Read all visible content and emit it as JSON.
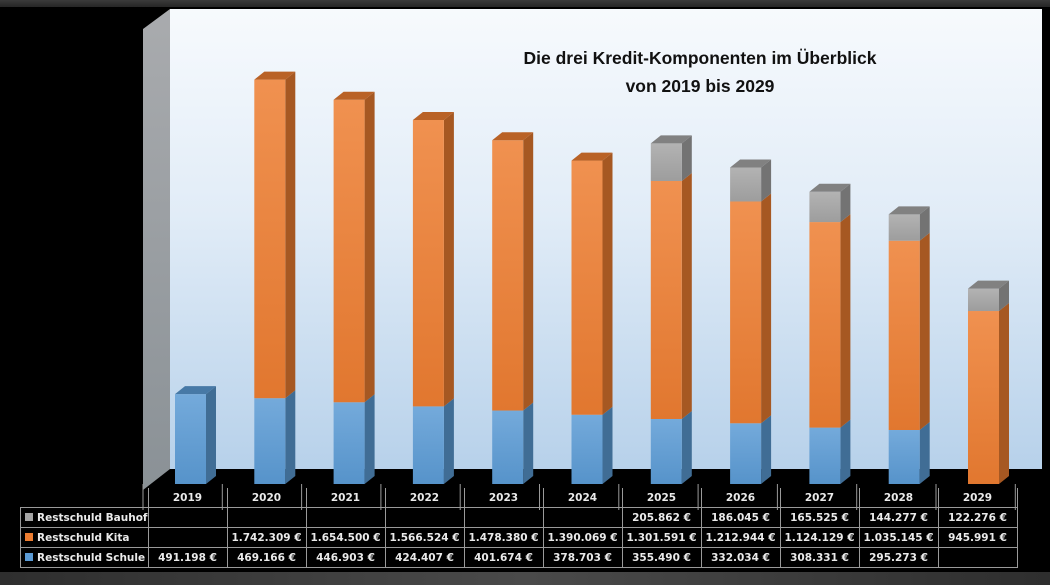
{
  "chart_data": {
    "type": "bar",
    "stacked": true,
    "style": "3d-column",
    "title": "Die drei Kredit-Komponenten im Überblick",
    "subtitle": "von 2019 bis 2029",
    "categories": [
      "2019",
      "2020",
      "2021",
      "2022",
      "2023",
      "2024",
      "2025",
      "2026",
      "2027",
      "2028",
      "2029"
    ],
    "series": [
      {
        "name": "Restschuld Schule",
        "color": "#5b9bd5",
        "values": [
          491198,
          469166,
          446903,
          424407,
          401674,
          378703,
          355490,
          332034,
          308331,
          295273,
          null
        ],
        "labels": [
          "491.198  €",
          "469.166  €",
          "446.903  €",
          "424.407  €",
          "401.674  €",
          "378.703  €",
          "355.490  €",
          "332.034  €",
          "308.331  €",
          "295.273  €",
          ""
        ]
      },
      {
        "name": "Restschuld Kita",
        "color": "#ed7d31",
        "values": [
          null,
          1742309,
          1654500,
          1566524,
          1478380,
          1390069,
          1301591,
          1212944,
          1124129,
          1035145,
          945991
        ],
        "labels": [
          "",
          "1.742.309  €",
          "1.654.500  €",
          "1.566.524  €",
          "1.478.380  €",
          "1.390.069  €",
          "1.301.591  €",
          "1.212.944  €",
          "1.124.129  €",
          "1.035.145  €",
          "945.991  €"
        ]
      },
      {
        "name": "Restschuld Bauhof",
        "color": "#a5a5a5",
        "values": [
          null,
          null,
          null,
          null,
          null,
          null,
          205862,
          186045,
          165525,
          144277,
          122276
        ],
        "labels": [
          "",
          "",
          "",
          "",
          "",
          "",
          "205.862  €",
          "186.045  €",
          "165.525  €",
          "144.277  €",
          "122.276  €"
        ]
      }
    ],
    "table_row_order": [
      "Restschuld Bauhof",
      "Restschuld Kita",
      "Restschuld Schule"
    ],
    "xlabel": "",
    "ylabel": "",
    "ylim": [
      0,
      2450000
    ],
    "grid": false,
    "legend": "data-table-bottom"
  }
}
